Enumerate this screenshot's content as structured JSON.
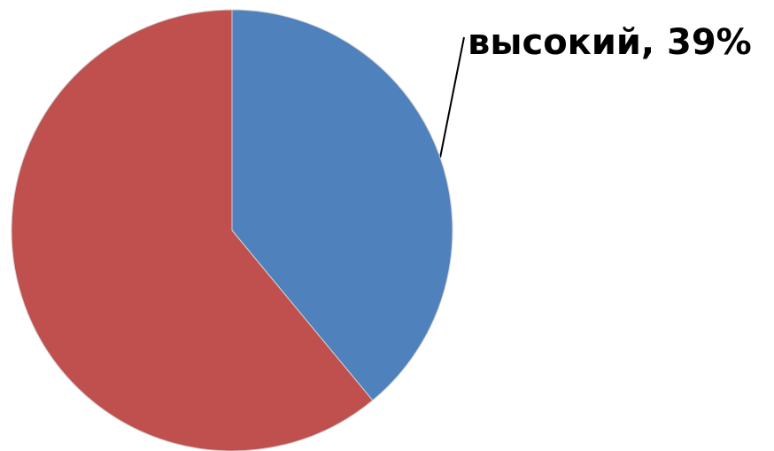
{
  "chart_data": {
    "type": "pie",
    "values": [
      39,
      61
    ],
    "value_labels": [
      "высокий, 39%",
      null
    ],
    "colors": [
      "#4f81bd",
      "#c0504d"
    ]
  }
}
